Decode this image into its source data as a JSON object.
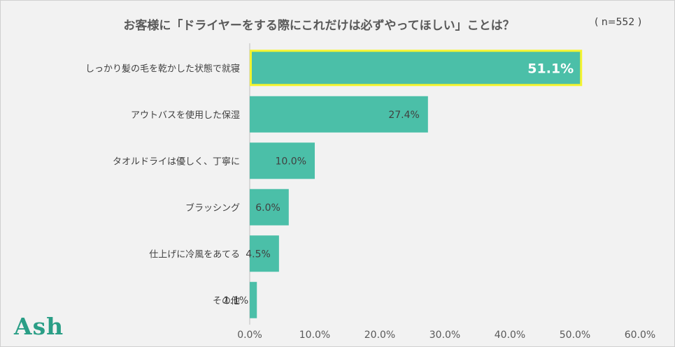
{
  "chart_data": {
    "type": "bar",
    "orientation": "horizontal",
    "title": "お客様に「ドライヤーをする際にこれだけは必ずやってほしい」ことは？",
    "note": "( n=552 )",
    "categories": [
      "しっかり髪の毛を乾かした状態で就寝",
      "アウトバスを使用した保湿",
      "タオルドライは優しく、丁寧に",
      "ブラッシング",
      "仕上げに冷風をあてる",
      "その他"
    ],
    "values": [
      51.1,
      27.4,
      10.0,
      6.0,
      4.5,
      1.1
    ],
    "value_labels": [
      "51.1%",
      "27.4%",
      "10.0%",
      "6.0%",
      "4.5%",
      "1.1%"
    ],
    "xlim": [
      0,
      60
    ],
    "x_ticks": [
      "0.0%",
      "10.0%",
      "20.0%",
      "30.0%",
      "40.0%",
      "50.0%",
      "60.0%"
    ],
    "bar_color": "#4bbfa8",
    "highlight_color": "#f4f42e",
    "highlight_index": 0
  },
  "logo": "Ash"
}
